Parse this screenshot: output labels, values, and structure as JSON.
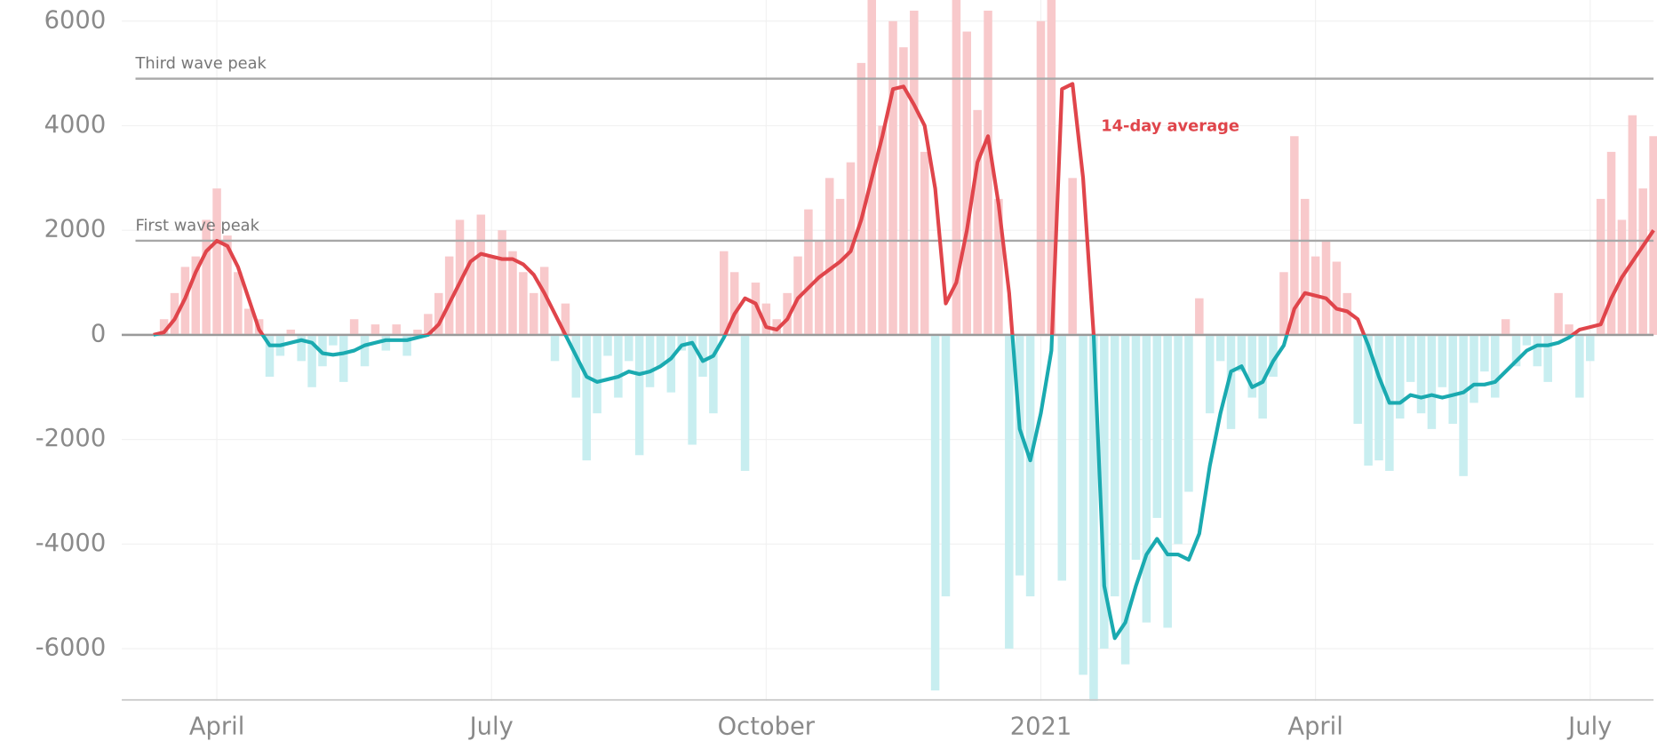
{
  "chart_data": {
    "type": "line",
    "categories": [
      null,
      null,
      null,
      null,
      null,
      null,
      "April",
      null,
      null,
      null,
      null,
      null,
      null,
      null,
      null,
      null,
      null,
      null,
      null,
      null,
      null,
      null,
      null,
      null,
      null,
      null,
      null,
      null,
      null,
      null,
      null,
      null,
      "July",
      null,
      null,
      null,
      null,
      null,
      null,
      null,
      null,
      null,
      null,
      null,
      null,
      null,
      null,
      null,
      null,
      null,
      null,
      null,
      null,
      null,
      null,
      null,
      null,
      null,
      "October",
      null,
      null,
      null,
      null,
      null,
      null,
      null,
      null,
      null,
      null,
      null,
      null,
      null,
      null,
      null,
      null,
      null,
      null,
      null,
      null,
      null,
      null,
      null,
      null,
      null,
      "2021",
      null,
      null,
      null,
      null,
      null,
      null,
      null,
      null,
      null,
      null,
      null,
      null,
      null,
      null,
      null,
      null,
      null,
      null,
      null,
      null,
      null,
      null,
      null,
      null,
      null,
      "April",
      null,
      null,
      null,
      null,
      null,
      null,
      null,
      null,
      null,
      null,
      null,
      null,
      null,
      null,
      null,
      null,
      null,
      null,
      null,
      null,
      null,
      null,
      null,
      null,
      null,
      "July",
      null,
      null,
      null,
      null,
      null,
      null
    ],
    "series": [
      {
        "name": "14-day average",
        "color": "#e0454b",
        "negative_color": "#1aaab0",
        "values": [
          0,
          50,
          300,
          700,
          1200,
          1600,
          1800,
          1700,
          1300,
          700,
          100,
          -200,
          -200,
          -150,
          -100,
          -150,
          -350,
          -380,
          -350,
          -300,
          -200,
          -150,
          -100,
          -100,
          -100,
          -50,
          0,
          200,
          600,
          1000,
          1400,
          1550,
          1500,
          1450,
          1450,
          1350,
          1150,
          800,
          400,
          0,
          -400,
          -800,
          -900,
          -850,
          -800,
          -700,
          -750,
          -700,
          -600,
          -450,
          -200,
          -150,
          -500,
          -400,
          -50,
          400,
          700,
          600,
          150,
          100,
          300,
          700,
          900,
          1100,
          1250,
          1400,
          1600,
          2200,
          3000,
          3800,
          4700,
          4750,
          4400,
          4000,
          2800,
          600,
          1000,
          2000,
          3300,
          3800,
          2500,
          800,
          -1800,
          -2400,
          -1500,
          -300,
          4700,
          4800,
          3000,
          0,
          -4800,
          -5800,
          -5500,
          -4800,
          -4200,
          -3900,
          -4200,
          -4200,
          -4300,
          -3800,
          -2500,
          -1500,
          -700,
          -600,
          -1000,
          -900,
          -500,
          -200,
          500,
          800,
          750,
          700,
          500,
          450,
          300,
          -200,
          -800,
          -1300,
          -1300,
          -1150,
          -1200,
          -1150,
          -1200,
          -1150,
          -1100,
          -950,
          -950,
          -900,
          -700,
          -500,
          -300,
          -200,
          -200,
          -150,
          -50,
          100,
          150,
          200,
          700,
          1100,
          1400,
          1700,
          2000
        ]
      }
    ],
    "bars": {
      "color": "#f8c9cb",
      "negative_color": "#c8eef0",
      "values": [
        0,
        300,
        800,
        1300,
        1500,
        2200,
        2800,
        1900,
        1200,
        500,
        300,
        -800,
        -400,
        100,
        -500,
        -1000,
        -600,
        -200,
        -900,
        300,
        -600,
        200,
        -300,
        200,
        -400,
        100,
        400,
        800,
        1500,
        2200,
        1800,
        2300,
        1500,
        2000,
        1600,
        1200,
        800,
        1300,
        -500,
        600,
        -1200,
        -2400,
        -1500,
        -400,
        -1200,
        -500,
        -2300,
        -1000,
        -600,
        -1100,
        -300,
        -2100,
        -800,
        -1500,
        1600,
        1200,
        -2600,
        1000,
        600,
        300,
        800,
        1500,
        2400,
        1800,
        3000,
        2600,
        3300,
        5200,
        6500,
        4000,
        6000,
        5500,
        6200,
        3500,
        -6800,
        -5000,
        6500,
        5800,
        4300,
        6200,
        2600,
        -6000,
        -4600,
        -5000,
        6000,
        6500,
        -4700,
        3000,
        -6500,
        -7000,
        -6000,
        -5000,
        -6300,
        -4300,
        -5500,
        -3500,
        -5600,
        -4000,
        -3000,
        700,
        -1500,
        -500,
        -1800,
        -700,
        -1200,
        -1600,
        -800,
        1200,
        3800,
        2600,
        1500,
        1800,
        1400,
        800,
        -1700,
        -2500,
        -2400,
        -2600,
        -1600,
        -900,
        -1500,
        -1800,
        -1000,
        -1700,
        -2700,
        -1300,
        -700,
        -1200,
        300,
        -600,
        -200,
        -600,
        -900,
        800,
        200,
        -1200,
        -500,
        2600,
        3500,
        2200,
        4200,
        2800,
        3800
      ]
    },
    "reference_lines": [
      {
        "label": "Third wave peak",
        "value": 4900
      },
      {
        "label": "First wave peak",
        "value": 1800
      }
    ],
    "ylim": [
      -7000,
      6000
    ],
    "yticks": [
      -6000,
      -4000,
      -2000,
      0,
      2000,
      4000,
      6000
    ],
    "grid": true
  }
}
